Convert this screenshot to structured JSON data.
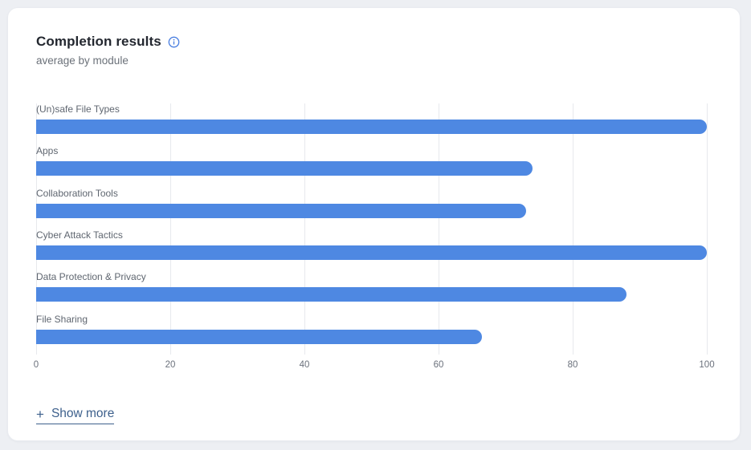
{
  "card": {
    "title": "Completion results",
    "subtitle": "average by module",
    "show_more_plus": "+",
    "show_more_label": "Show more"
  },
  "colors": {
    "bar": "#4e88e2",
    "info_icon": "#4a7fe0",
    "link": "#3d608c",
    "gridline": "#e7e9ed",
    "page_background": "#edeff3",
    "card_background": "#ffffff"
  },
  "chart_data": {
    "type": "bar",
    "orientation": "horizontal",
    "title": "Completion results",
    "subtitle": "average by module",
    "categories": [
      "(Un)safe File Types",
      "Apps",
      "Collaboration Tools",
      "Cyber Attack Tactics",
      "Data Protection & Privacy",
      "File Sharing"
    ],
    "values": [
      100,
      74,
      73,
      100,
      88,
      66.5
    ],
    "xlim": [
      0,
      100
    ],
    "x_ticks": [
      0,
      20,
      40,
      60,
      80,
      100
    ],
    "grid": "vertical",
    "legend": "none"
  }
}
